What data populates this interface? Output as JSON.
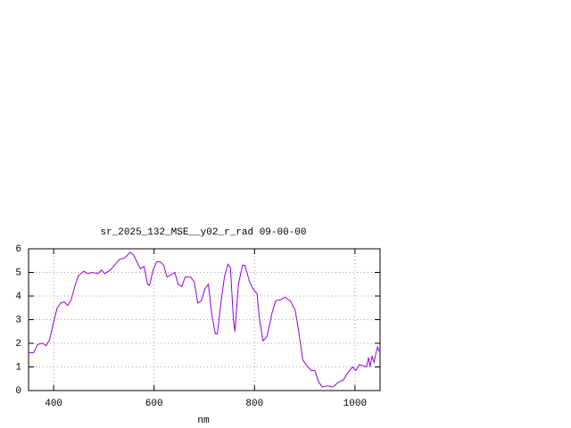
{
  "chart_data": {
    "type": "line",
    "title": "sr_2025_132_MSE__y02_r_rad 09-00-00",
    "x_label": "nm",
    "x": [
      350,
      360,
      368,
      378,
      385,
      392,
      400,
      407,
      414,
      421,
      428,
      435,
      442,
      449,
      460,
      467,
      478,
      488,
      495,
      502,
      513,
      523,
      531,
      541,
      552,
      559,
      568,
      573,
      580,
      587,
      591,
      598,
      605,
      612,
      619,
      626,
      634,
      641,
      648,
      655,
      662,
      673,
      680,
      687,
      694,
      701,
      708,
      715,
      722,
      726,
      733,
      740,
      747,
      752,
      758,
      761,
      768,
      776,
      781,
      790,
      797,
      805,
      810,
      817,
      825,
      835,
      842,
      853,
      860,
      871,
      881,
      888,
      896,
      906,
      913,
      920,
      928,
      935,
      945,
      956,
      967,
      977,
      984,
      995,
      1002,
      1009,
      1016,
      1023,
      1027,
      1030,
      1034,
      1038,
      1041,
      1045,
      1048
    ],
    "series": [
      {
        "color": "#9400d3",
        "values": [
          1.6,
          1.6,
          1.95,
          2.0,
          1.9,
          2.15,
          2.9,
          3.5,
          3.7,
          3.75,
          3.6,
          3.85,
          4.4,
          4.85,
          5.05,
          4.95,
          5.0,
          4.95,
          5.1,
          4.95,
          5.1,
          5.35,
          5.55,
          5.6,
          5.85,
          5.75,
          5.35,
          5.15,
          5.25,
          4.5,
          4.45,
          5.1,
          5.45,
          5.45,
          5.3,
          4.8,
          4.9,
          5.0,
          4.5,
          4.4,
          4.8,
          4.8,
          4.6,
          3.7,
          3.8,
          4.3,
          4.5,
          3.2,
          2.4,
          2.4,
          3.7,
          4.8,
          5.35,
          5.2,
          3.0,
          2.5,
          4.5,
          5.3,
          5.3,
          4.6,
          4.3,
          4.1,
          3.0,
          2.1,
          2.3,
          3.3,
          3.8,
          3.85,
          3.95,
          3.8,
          3.4,
          2.5,
          1.3,
          1.0,
          0.85,
          0.85,
          0.35,
          0.15,
          0.2,
          0.15,
          0.35,
          0.45,
          0.7,
          1.0,
          0.85,
          1.1,
          1.05,
          1.0,
          1.4,
          1.0,
          1.45,
          1.2,
          1.5,
          1.85,
          1.65
        ]
      }
    ],
    "xlim": [
      350,
      1050
    ],
    "xticks": [
      400,
      600,
      800,
      1000
    ],
    "ylim": [
      0,
      6
    ],
    "yticks": [
      0,
      1,
      2,
      3,
      4,
      5,
      6
    ],
    "grid": true
  }
}
